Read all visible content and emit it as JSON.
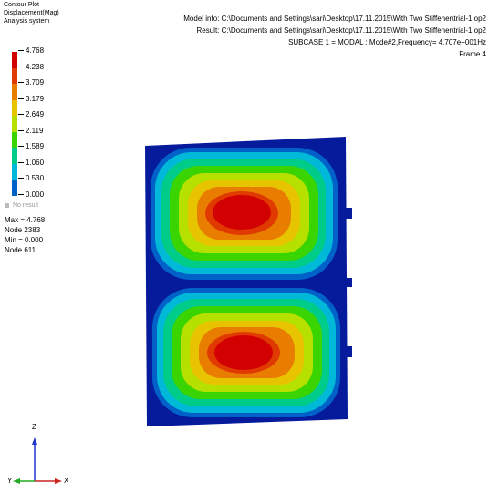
{
  "legend": {
    "title_lines": [
      "Contour Plot",
      "Displacement(Mag)",
      "Analysis system"
    ],
    "values": [
      "4.768",
      "4.238",
      "3.709",
      "3.179",
      "2.649",
      "2.119",
      "1.589",
      "1.060",
      "0.530",
      "0.000"
    ],
    "colors": [
      "#d20000",
      "#e03a00",
      "#e87d00",
      "#e8c400",
      "#b5e000",
      "#3ad400",
      "#00cc8a",
      "#00b8d8",
      "#0062c8",
      "#061a9c"
    ],
    "no_result": "No result"
  },
  "stats": {
    "max": "Max = 4.768",
    "max_node": "Node 2383",
    "min": "Min = 0.000",
    "min_node": "Node 611"
  },
  "header": {
    "model_info": "Model info: C:\\Documents and Settings\\sari\\Desktop\\17.11.2015\\With Two Stiffener\\trial-1.op2",
    "result": "Result: C:\\Documents and Settings\\sari\\Desktop\\17.11.2015\\With Two Stiffener\\trial-1.op2",
    "subcase": "SUBCASE 1 = MODAL  : Mode#2,Frequency=  4.707e+001Hz",
    "frame": "Frame 4"
  },
  "axes": {
    "z": "Z",
    "y": "Y",
    "x": "X"
  }
}
